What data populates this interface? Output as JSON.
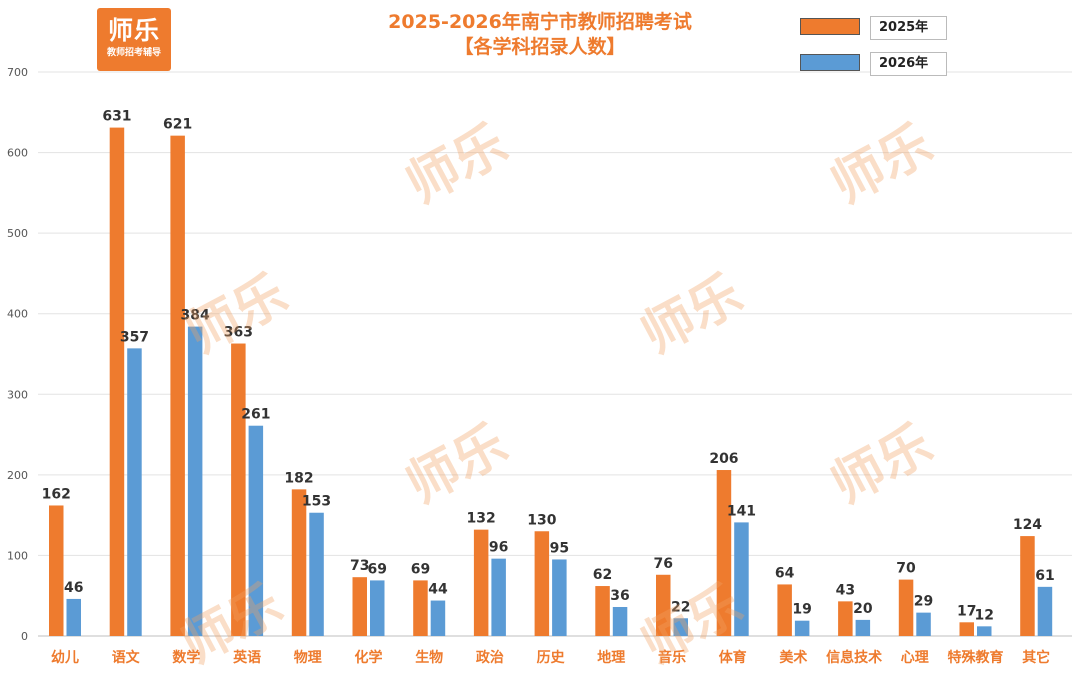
{
  "logo": {
    "main_text": "师乐",
    "sub_text": "教师招考辅导"
  },
  "watermark_text": "师乐",
  "colors": {
    "series_2025": "#ee7b2e",
    "series_2026": "#5b9bd5",
    "accent": "#ee7b2e"
  },
  "chart_data": {
    "type": "bar",
    "title": "2025-2026年南宁市教师招聘考试",
    "subtitle": "【各学科招录人数】",
    "categories": [
      "幼儿",
      "语文",
      "数学",
      "英语",
      "物理",
      "化学",
      "生物",
      "政治",
      "历史",
      "地理",
      "音乐",
      "体育",
      "美术",
      "信息技术",
      "心理",
      "特殊教育",
      "其它"
    ],
    "series": [
      {
        "name": "2025年",
        "values": [
          162,
          631,
          621,
          363,
          182,
          73,
          69,
          132,
          130,
          62,
          76,
          206,
          64,
          43,
          70,
          17,
          124
        ]
      },
      {
        "name": "2026年",
        "values": [
          46,
          357,
          384,
          261,
          153,
          69,
          44,
          96,
          95,
          36,
          22,
          141,
          19,
          20,
          29,
          12,
          61
        ]
      }
    ],
    "ylim": [
      0,
      700
    ],
    "yticks": [
      0,
      100,
      200,
      300,
      400,
      500,
      600,
      700
    ],
    "grid": true,
    "legend": "top-right",
    "xlabel": "",
    "ylabel": ""
  }
}
